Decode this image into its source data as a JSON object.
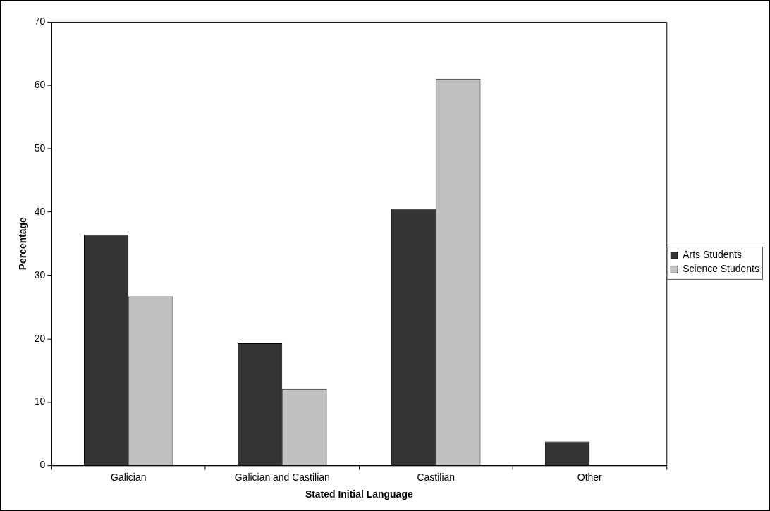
{
  "chart_data": {
    "type": "bar",
    "xlabel": "Stated Initial Language",
    "ylabel": "Percentage",
    "categories": [
      "Galician",
      "Galician and Castilian",
      "Castilian",
      "Other"
    ],
    "series": [
      {
        "name": "Arts Students",
        "color": "#333333",
        "values": [
          36.4,
          19.3,
          40.5,
          3.8
        ]
      },
      {
        "name": "Science Students",
        "color": "#c0c0c0",
        "values": [
          26.7,
          12.1,
          61.0,
          null
        ]
      }
    ],
    "ylim": [
      0,
      70
    ],
    "yticks": [
      0,
      10,
      20,
      30,
      40,
      50,
      60,
      70
    ],
    "grid": false,
    "legend": "right"
  }
}
